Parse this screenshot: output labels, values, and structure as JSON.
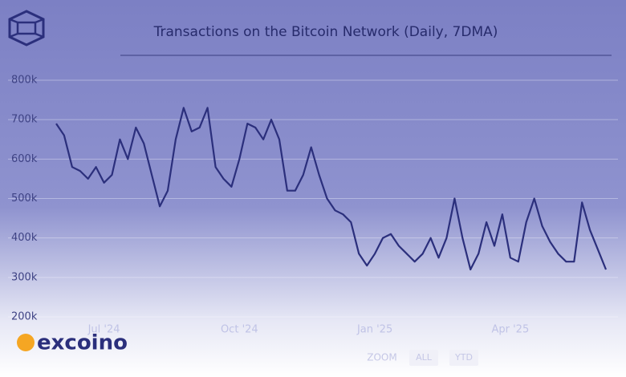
{
  "chart_data": {
    "type": "line",
    "title": "Transactions on the Bitcoin Network (Daily, 7DMA)",
    "categories": [
      null,
      null,
      null,
      null,
      null,
      null,
      "Jul '24",
      null,
      null,
      null,
      null,
      null,
      null,
      null,
      null,
      null,
      null,
      null,
      null,
      null,
      null,
      null,
      null,
      "Oct '24",
      null,
      null,
      null,
      null,
      null,
      null,
      null,
      null,
      null,
      null,
      null,
      null,
      null,
      null,
      null,
      null,
      "Jan '25",
      null,
      null,
      null,
      null,
      null,
      null,
      null,
      null,
      null,
      null,
      null,
      null,
      null,
      null,
      null,
      null,
      "Apr '25",
      null,
      null,
      null,
      null,
      null,
      null,
      null,
      null,
      null,
      null,
      null,
      null
    ],
    "values": [
      690000,
      660000,
      580000,
      570000,
      550000,
      580000,
      540000,
      560000,
      650000,
      600000,
      680000,
      640000,
      560000,
      480000,
      520000,
      650000,
      730000,
      670000,
      680000,
      730000,
      580000,
      550000,
      530000,
      600000,
      690000,
      680000,
      650000,
      700000,
      650000,
      520000,
      520000,
      560000,
      630000,
      560000,
      500000,
      470000,
      460000,
      440000,
      360000,
      330000,
      360000,
      400000,
      410000,
      380000,
      360000,
      340000,
      360000,
      400000,
      350000,
      400000,
      500000,
      400000,
      320000,
      360000,
      440000,
      380000,
      460000,
      350000,
      340000,
      440000,
      500000,
      430000,
      390000,
      360000,
      340000,
      340000,
      490000,
      420000,
      370000,
      320000
    ],
    "color": "#2b2f7c",
    "ylim": [
      200000,
      800000
    ],
    "yticks": [
      {
        "value": 200000,
        "label": "200k"
      },
      {
        "value": 300000,
        "label": "300k"
      },
      {
        "value": 400000,
        "label": "400k"
      },
      {
        "value": 500000,
        "label": "500k"
      },
      {
        "value": 600000,
        "label": "600k"
      },
      {
        "value": 700000,
        "label": "700k"
      },
      {
        "value": 800000,
        "label": "800k"
      }
    ],
    "grid": true
  },
  "watermark": "excoino",
  "zoom": {
    "label": "ZOOM",
    "buttons": [
      "ALL",
      "YTD"
    ]
  }
}
